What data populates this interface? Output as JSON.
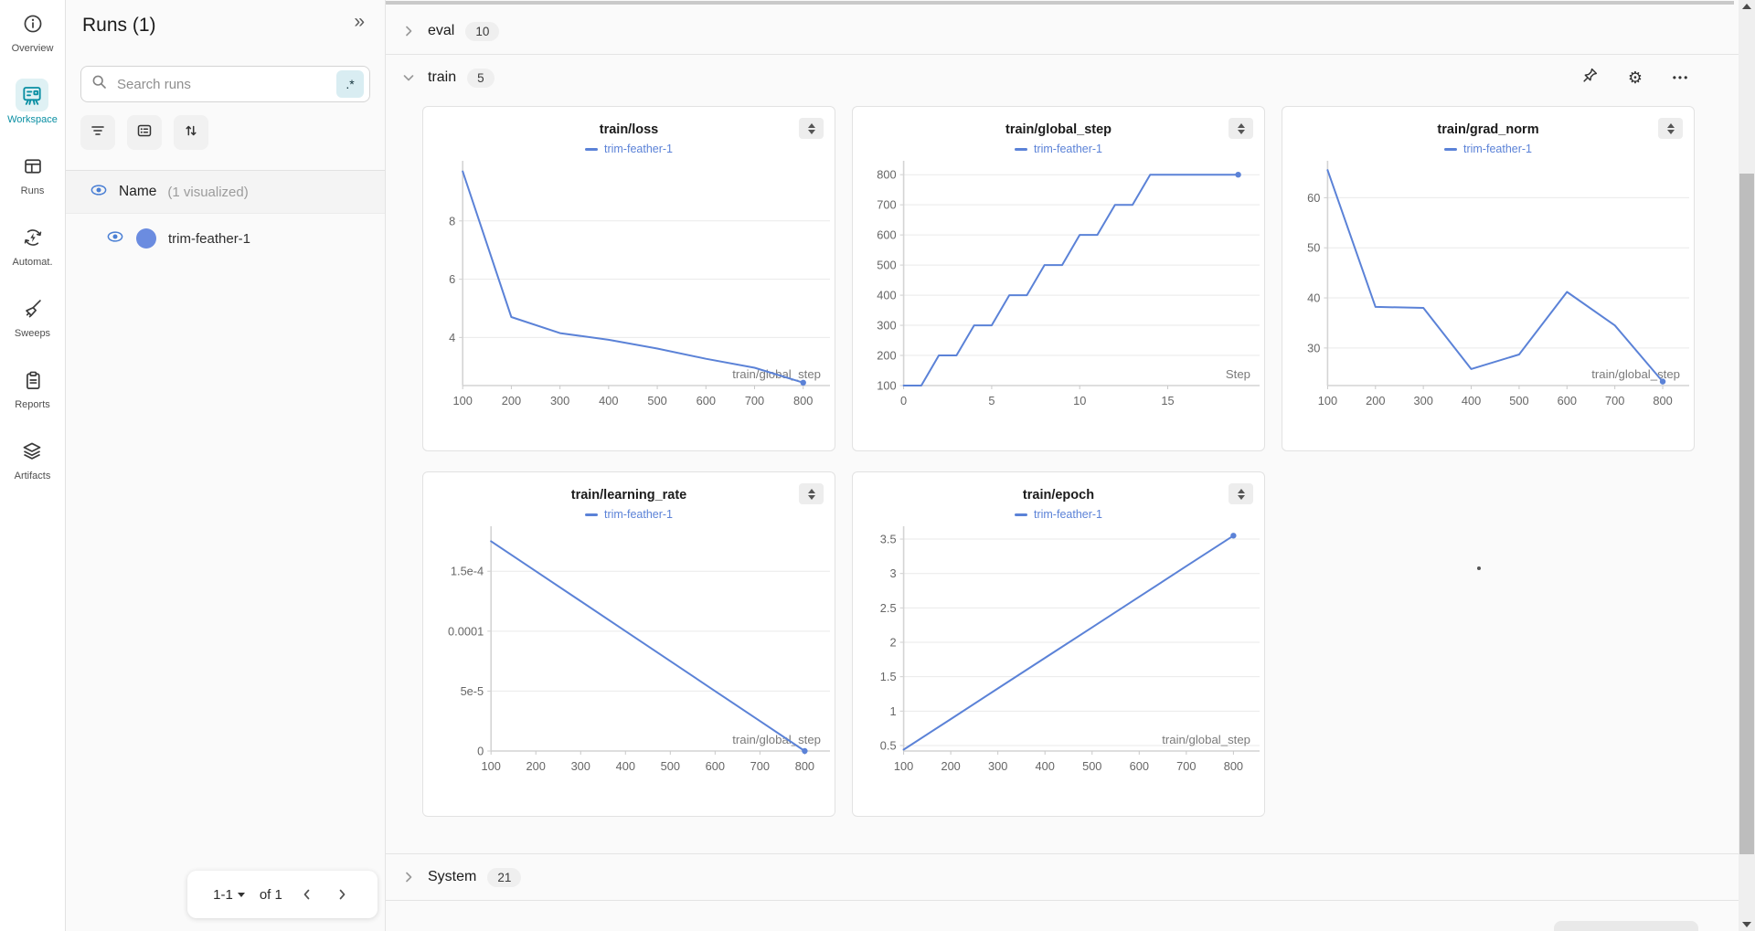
{
  "colors": {
    "accent_blue": "#5b82d7",
    "teal": "#0a8fa3",
    "run_dot": "#6b8ce0",
    "eye_blue": "#4a7fd4"
  },
  "sidebar": {
    "items": [
      {
        "id": "overview",
        "label": "Overview",
        "icon": "overview",
        "active": false
      },
      {
        "id": "workspace",
        "label": "Workspace",
        "icon": "workspace",
        "active": true
      },
      {
        "id": "runs",
        "label": "Runs",
        "icon": "runs",
        "active": false
      },
      {
        "id": "automations",
        "label": "Automat.",
        "icon": "automations",
        "active": false
      },
      {
        "id": "sweeps",
        "label": "Sweeps",
        "icon": "sweeps",
        "active": false
      },
      {
        "id": "reports",
        "label": "Reports",
        "icon": "reports",
        "active": false
      },
      {
        "id": "artifacts",
        "label": "Artifacts",
        "icon": "artifacts",
        "active": false
      }
    ]
  },
  "runs_panel": {
    "title": "Runs (1)",
    "collapse_glyph": "»",
    "search": {
      "placeholder": "Search runs",
      "value": "",
      "regex_badge": ".*"
    },
    "list_header": {
      "name": "Name",
      "suffix": "(1 visualized)"
    },
    "run": {
      "name": "trim-feather-1"
    },
    "pagination": {
      "range": "1-1",
      "of_label": "of 1"
    }
  },
  "main": {
    "sections": [
      {
        "id": "eval",
        "label": "eval",
        "count": "10",
        "collapsed": true
      },
      {
        "id": "train",
        "label": "train",
        "count": "5",
        "collapsed": false,
        "has_actions": true,
        "panel_indices": [
          0,
          1,
          2,
          3,
          4
        ]
      },
      {
        "id": "system",
        "label": "System",
        "count": "21",
        "collapsed": true
      }
    ],
    "more_glyph": "•••",
    "gear_glyph": "⚙"
  },
  "chart_data": [
    {
      "type": "line",
      "title": "train/loss",
      "legend": "trim-feather-1",
      "color": "#5b82d7",
      "xlabel": "train/global_step",
      "x": [
        100,
        200,
        300,
        400,
        500,
        600,
        700,
        800
      ],
      "y": [
        9.7,
        4.7,
        4.15,
        3.92,
        3.62,
        3.27,
        2.96,
        2.45
      ],
      "xticks": [
        100,
        200,
        300,
        400,
        500,
        600,
        700,
        800
      ],
      "yticks": [
        4,
        6,
        8
      ],
      "ytick_labels": [
        "4",
        "6",
        "8"
      ],
      "xlim": [
        100,
        840
      ],
      "ylim": [
        2.35,
        10.0
      ],
      "grid": true,
      "end_dot": true
    },
    {
      "type": "line",
      "title": "train/global_step",
      "legend": "trim-feather-1",
      "color": "#5b82d7",
      "xlabel": "Step",
      "x": [
        0,
        1,
        2,
        3,
        4,
        5,
        6,
        7,
        8,
        9,
        10,
        11,
        12,
        13,
        14,
        19
      ],
      "y": [
        100,
        100,
        200,
        200,
        300,
        300,
        400,
        400,
        500,
        500,
        600,
        600,
        700,
        700,
        800,
        800
      ],
      "xticks": [
        0,
        5,
        10,
        15
      ],
      "yticks": [
        100,
        200,
        300,
        400,
        500,
        600,
        700,
        800
      ],
      "ytick_labels": [
        "100",
        "200",
        "300",
        "400",
        "500",
        "600",
        "700",
        "800"
      ],
      "xlim": [
        0,
        19.8
      ],
      "ylim": [
        100,
        840
      ],
      "grid": true,
      "end_dot": true
    },
    {
      "type": "line",
      "title": "train/grad_norm",
      "legend": "trim-feather-1",
      "color": "#5b82d7",
      "xlabel": "train/global_step",
      "x": [
        100,
        200,
        300,
        400,
        500,
        600,
        700,
        800
      ],
      "y": [
        65.5,
        38.2,
        38.0,
        25.8,
        28.7,
        41.2,
        34.5,
        23.3
      ],
      "xticks": [
        100,
        200,
        300,
        400,
        500,
        600,
        700,
        800
      ],
      "yticks": [
        30,
        40,
        50,
        60
      ],
      "ytick_labels": [
        "30",
        "40",
        "50",
        "60"
      ],
      "xlim": [
        100,
        840
      ],
      "ylim": [
        22.5,
        67
      ],
      "grid": true,
      "end_dot": true
    },
    {
      "type": "line",
      "title": "train/learning_rate",
      "legend": "trim-feather-1",
      "color": "#5b82d7",
      "xlabel": "train/global_step",
      "x": [
        100,
        200,
        300,
        400,
        500,
        600,
        700,
        800
      ],
      "y": [
        0.000175,
        0.00015,
        0.000125,
        0.0001,
        7.5e-05,
        5e-05,
        2.5e-05,
        0
      ],
      "xticks": [
        100,
        200,
        300,
        400,
        500,
        600,
        700,
        800
      ],
      "yticks": [
        0,
        5e-05,
        0.0001,
        0.00015
      ],
      "ytick_labels": [
        "0",
        "5e-5",
        "0.0001",
        "1.5e-4"
      ],
      "xlim": [
        100,
        840
      ],
      "ylim": [
        0,
        0.000186
      ],
      "grid": true,
      "end_dot": true
    },
    {
      "type": "line",
      "title": "train/epoch",
      "legend": "trim-feather-1",
      "color": "#5b82d7",
      "xlabel": "train/global_step",
      "x": [
        100,
        200,
        300,
        400,
        500,
        600,
        700,
        800
      ],
      "y": [
        0.44,
        0.884,
        1.329,
        1.773,
        2.217,
        2.662,
        3.106,
        3.55
      ],
      "xticks": [
        100,
        200,
        300,
        400,
        500,
        600,
        700,
        800
      ],
      "yticks": [
        0.5,
        1,
        1.5,
        2,
        2.5,
        3,
        3.5
      ],
      "ytick_labels": [
        "0.5",
        "1",
        "1.5",
        "2",
        "2.5",
        "3",
        "3.5"
      ],
      "xlim": [
        100,
        840
      ],
      "ylim": [
        0.42,
        3.66
      ],
      "grid": true,
      "end_dot": true
    }
  ]
}
